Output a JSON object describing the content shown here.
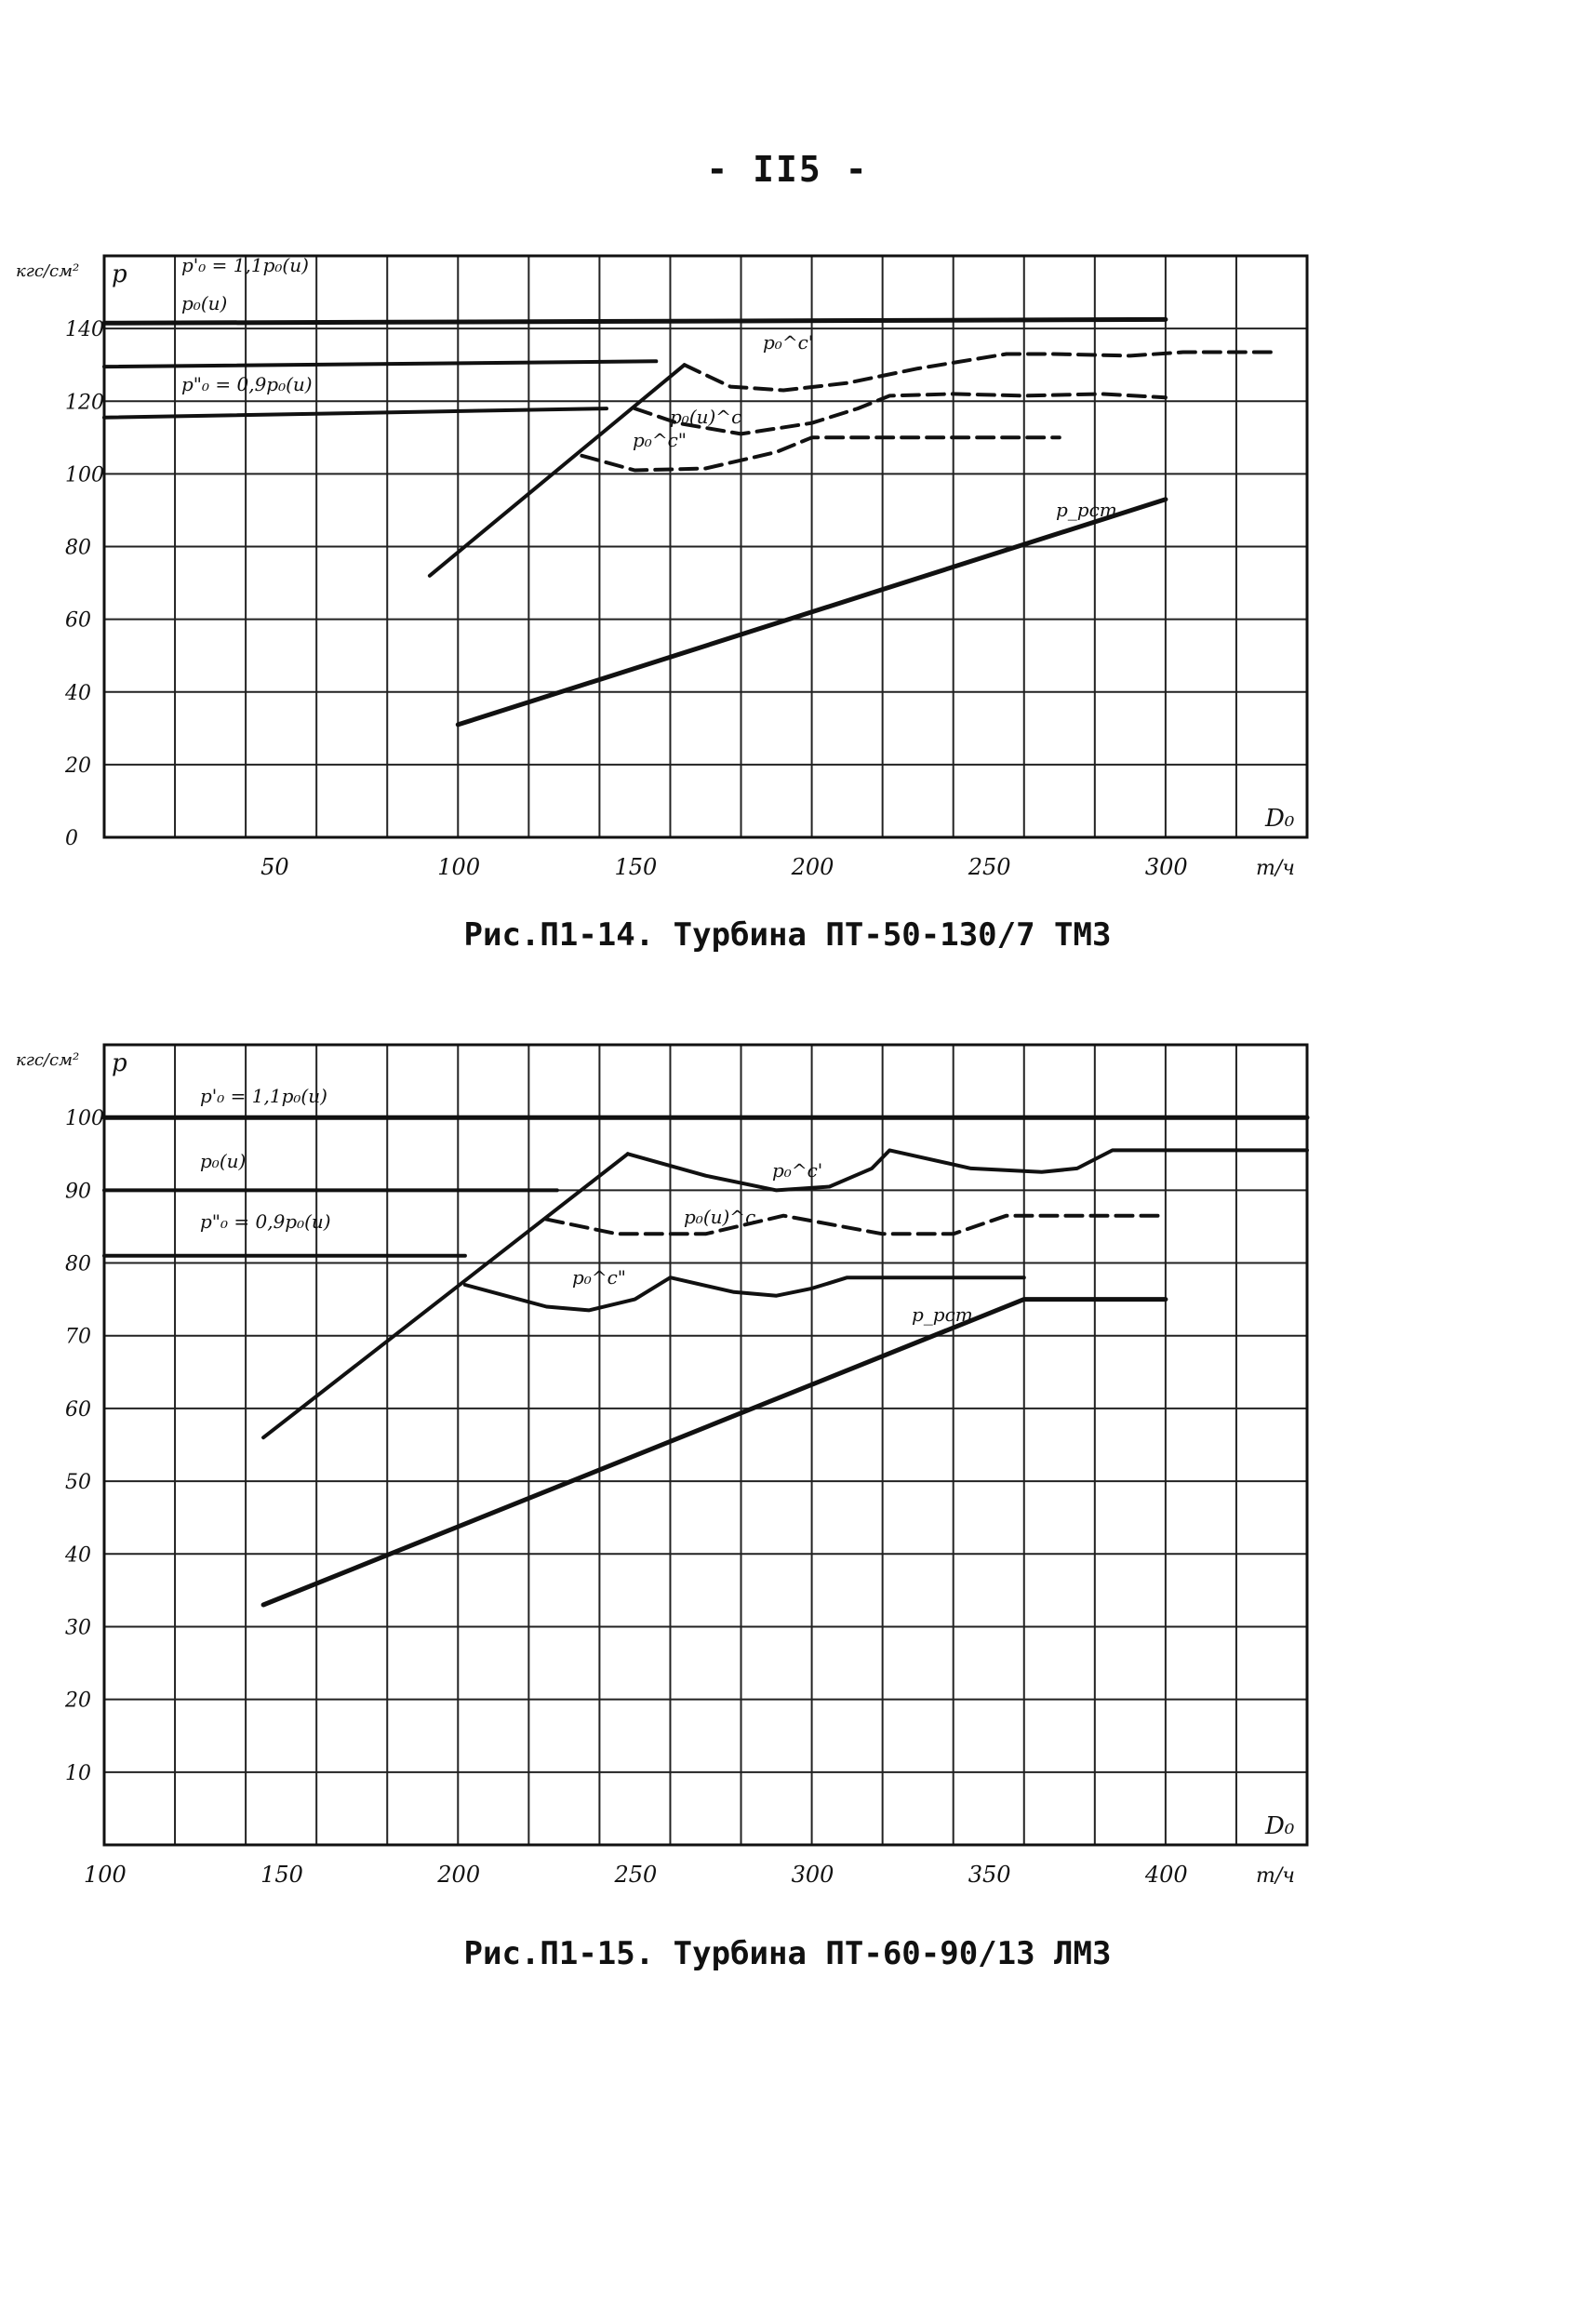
{
  "page": {
    "number": "- II5 -"
  },
  "chart_data": [
    {
      "type": "line",
      "caption": "Рис.П1-14. Турбина ПТ-50-130/7 ТМЗ",
      "xlabel": "D₀",
      "xunit": "т/ч",
      "ylabel": "p",
      "yunit": "кгс/см²",
      "xlim": [
        0,
        340
      ],
      "ylim": [
        0,
        160
      ],
      "x_ticks": [
        50,
        100,
        150,
        200,
        250,
        300
      ],
      "y_ticks": [
        0,
        20,
        40,
        60,
        80,
        100,
        120,
        140
      ],
      "grid": true,
      "series": [
        {
          "name": "p'₀ = 1,1p₀(и)",
          "style": "solid",
          "width": 5,
          "points": [
            [
              0,
              141.5
            ],
            [
              300,
              142.5
            ]
          ]
        },
        {
          "name": "p₀(и)",
          "style": "solid",
          "width": 4,
          "points": [
            [
              0,
              129.5
            ],
            [
              156,
              131
            ]
          ]
        },
        {
          "name": "p\"₀ = 0,9p₀(и)",
          "style": "solid",
          "width": 4,
          "points": [
            [
              0,
              115.5
            ],
            [
              142,
              118
            ]
          ]
        },
        {
          "name": "p₀^c' (upper boundary)",
          "style": "solid",
          "width": 4,
          "points": [
            [
              92,
              72
            ],
            [
              164,
              130
            ]
          ]
        },
        {
          "name": "p₀^c'",
          "style": "dashed",
          "width": 4,
          "points": [
            [
              164,
              130
            ],
            [
              177,
              124
            ],
            [
              192,
              123
            ],
            [
              210,
              125
            ],
            [
              230,
              129
            ],
            [
              255,
              133
            ],
            [
              268,
              133
            ],
            [
              290,
              132.5
            ],
            [
              305,
              133.5
            ],
            [
              330,
              133.5
            ]
          ]
        },
        {
          "name": "p₀(и)^c",
          "style": "dashed",
          "width": 4,
          "points": [
            [
              150,
              118
            ],
            [
              162,
              114
            ],
            [
              180,
              111
            ],
            [
              200,
              114
            ],
            [
              213,
              118
            ],
            [
              222,
              121.5
            ],
            [
              240,
              122
            ],
            [
              260,
              121.5
            ],
            [
              282,
              122
            ],
            [
              300,
              121
            ]
          ]
        },
        {
          "name": "p₀^c''",
          "style": "dashed",
          "width": 4,
          "points": [
            [
              135,
              105
            ],
            [
              150,
              101
            ],
            [
              170,
              101.5
            ],
            [
              190,
              106
            ],
            [
              200,
              110
            ],
            [
              210,
              110
            ],
            [
              240,
              110
            ],
            [
              270,
              110
            ]
          ]
        },
        {
          "name": "p_рст",
          "style": "solid",
          "width": 5,
          "points": [
            [
              100,
              31
            ],
            [
              300,
              93
            ]
          ]
        }
      ],
      "annotations": [
        "p'₀ = 1,1p₀(и)",
        "p₀(и)",
        "p\"₀ = 0,9p₀(и)",
        "p₀^c'",
        "p₀(и)^c",
        "p₀^c\"",
        "p_рст"
      ]
    },
    {
      "type": "line",
      "caption": "Рис.П1-15. Турбина ПТ-60-90/13 ЛМЗ",
      "xlabel": "D₀",
      "xunit": "т/ч",
      "ylabel": "p",
      "yunit": "кгс/см²",
      "xlim": [
        100,
        440
      ],
      "ylim": [
        0,
        110
      ],
      "x_ticks": [
        100,
        150,
        200,
        250,
        300,
        350,
        400
      ],
      "y_ticks": [
        10,
        20,
        30,
        40,
        50,
        60,
        70,
        80,
        90,
        100
      ],
      "grid": true,
      "series": [
        {
          "name": "p'₀ = 1,1p₀(и)",
          "style": "solid",
          "width": 5,
          "points": [
            [
              100,
              100
            ],
            [
              440,
              100
            ]
          ]
        },
        {
          "name": "p₀(и)",
          "style": "solid",
          "width": 4,
          "points": [
            [
              100,
              90
            ],
            [
              228,
              90
            ]
          ]
        },
        {
          "name": "p\"₀ = 0,9p₀(и)",
          "style": "solid",
          "width": 4,
          "points": [
            [
              100,
              81
            ],
            [
              202,
              81
            ]
          ]
        },
        {
          "name": "p₀^c' (upper boundary)",
          "style": "solid",
          "width": 4,
          "points": [
            [
              145,
              56
            ],
            [
              248,
              95
            ]
          ]
        },
        {
          "name": "p₀^c'",
          "style": "solid",
          "width": 4,
          "points": [
            [
              248,
              95
            ],
            [
              270,
              92
            ],
            [
              290,
              90
            ],
            [
              305,
              90.5
            ],
            [
              317,
              93
            ],
            [
              322,
              95.5
            ],
            [
              345,
              93
            ],
            [
              365,
              92.5
            ],
            [
              375,
              93
            ],
            [
              385,
              95.5
            ],
            [
              440,
              95.5
            ]
          ]
        },
        {
          "name": "p₀(и)^c",
          "style": "dashed",
          "width": 4,
          "points": [
            [
              225,
              86
            ],
            [
              245,
              84
            ],
            [
              270,
              84
            ],
            [
              292,
              86.5
            ],
            [
              320,
              84
            ],
            [
              340,
              84
            ],
            [
              355,
              86.5
            ],
            [
              400,
              86.5
            ]
          ]
        },
        {
          "name": "p₀^c''",
          "style": "solid",
          "width": 4,
          "points": [
            [
              202,
              77
            ],
            [
              225,
              74
            ],
            [
              237,
              73.5
            ],
            [
              250,
              75
            ],
            [
              260,
              78
            ],
            [
              278,
              76
            ],
            [
              290,
              75.5
            ],
            [
              300,
              76.5
            ],
            [
              310,
              78
            ],
            [
              360,
              78
            ]
          ]
        },
        {
          "name": "p_рст",
          "style": "solid",
          "width": 5,
          "points": [
            [
              145,
              33
            ],
            [
              360,
              75
            ],
            [
              400,
              75
            ]
          ]
        }
      ],
      "annotations": [
        "p'₀ = 1,1p₀(и)",
        "p₀(и)",
        "p\"₀ = 0,9p₀(и)",
        "p₀^c'",
        "p₀(и)^c",
        "p₀^c\"",
        "p_рст"
      ]
    }
  ]
}
